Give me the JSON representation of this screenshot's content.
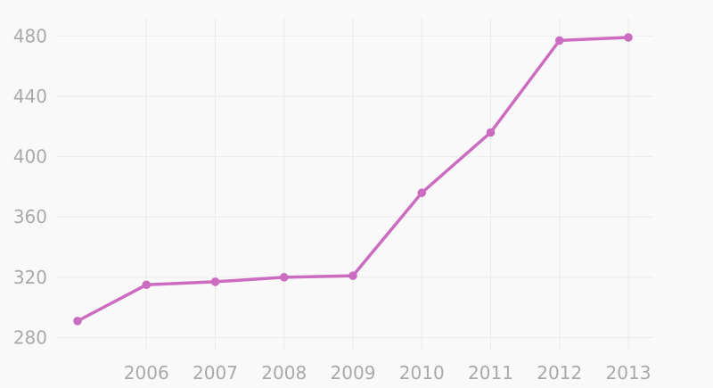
{
  "chart_data": {
    "type": "line",
    "x": [
      "2005",
      "2006",
      "2007",
      "2008",
      "2009",
      "2010",
      "2011",
      "2012",
      "2013"
    ],
    "x_tick_labels": [
      "2006",
      "2007",
      "2008",
      "2009",
      "2010",
      "2011",
      "2012",
      "2013"
    ],
    "series": [
      {
        "values": [
          291,
          315,
          317,
          320,
          321,
          376,
          416,
          477,
          479
        ],
        "color": "#cc6cc0"
      }
    ],
    "y_ticks": [
      280,
      320,
      360,
      400,
      440,
      480
    ],
    "ylim": [
      272,
      492
    ],
    "title": "",
    "xlabel": "",
    "ylabel": "",
    "grid": true,
    "legend": "none",
    "colors": {
      "background": "#f9f9f9",
      "grid": "#ececec",
      "tick_text": "#a9a9a9",
      "line": "#cc6cc0"
    }
  }
}
